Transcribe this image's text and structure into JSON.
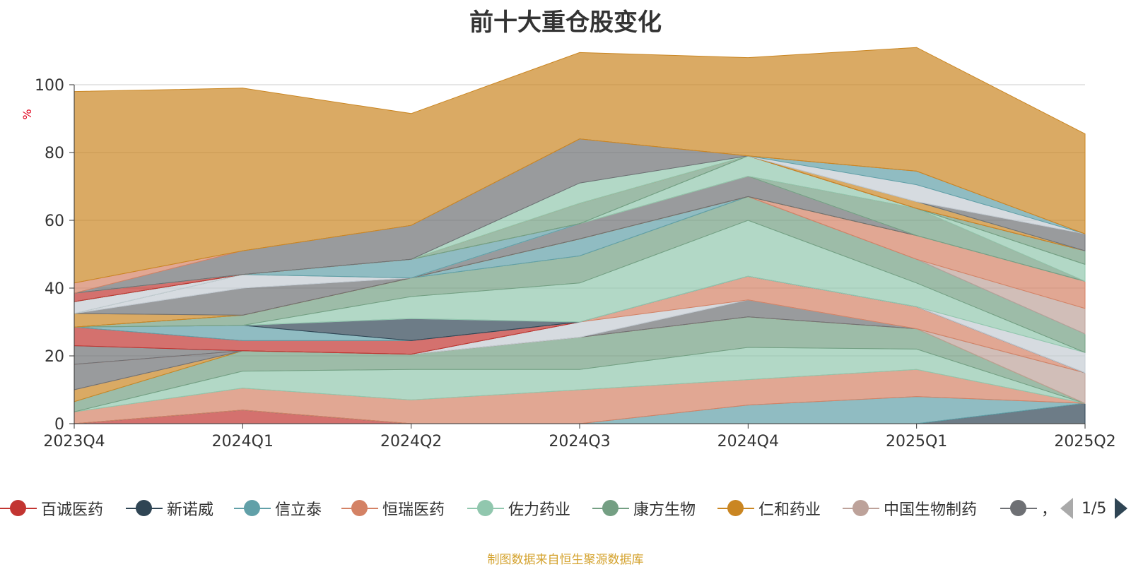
{
  "title": "前十大重仓股变化",
  "source_note": "制图数据来自恒生聚源数据库",
  "legend": {
    "items": [
      {
        "name": "百诚医药",
        "color": "#c23531"
      },
      {
        "name": "新诺威",
        "color": "#2f4554"
      },
      {
        "name": "信立泰",
        "color": "#61a0a8"
      },
      {
        "name": "恒瑞医药",
        "color": "#d48265"
      },
      {
        "name": "佐力药业",
        "color": "#91c7ae"
      },
      {
        "name": "康方生物",
        "color": "#749f83"
      },
      {
        "name": "仁和药业",
        "color": "#ca8622"
      },
      {
        "name": "中国生物制药",
        "color": "#bda29a"
      },
      {
        "name": "，",
        "color": "#6e7074"
      }
    ],
    "page": "1/5"
  },
  "chart_data": {
    "type": "area",
    "stacked": true,
    "title": "前十大重仓股变化",
    "ylabel": "%",
    "ylim": [
      0,
      100
    ],
    "yticks": [
      0,
      20,
      40,
      60,
      80,
      100
    ],
    "categories": [
      "2023Q4",
      "2024Q1",
      "2024Q2",
      "2024Q3",
      "2024Q4",
      "2025Q1",
      "2025Q2"
    ],
    "grid": true,
    "legend_position": "bottom",
    "band_opacity": 0.7,
    "series_layers": [
      {
        "color": "#c23531",
        "values": [
          0,
          4,
          0,
          0,
          0,
          0,
          0
        ]
      },
      {
        "color": "#2f4554",
        "values": [
          0,
          0,
          0,
          0,
          0,
          0,
          6
        ]
      },
      {
        "color": "#61a0a8",
        "values": [
          0,
          0,
          0,
          0,
          5.5,
          8,
          0
        ]
      },
      {
        "color": "#d48265",
        "values": [
          3.5,
          6.5,
          7,
          10,
          7.5,
          8,
          0
        ]
      },
      {
        "color": "#91c7ae",
        "values": [
          0,
          5,
          9,
          6,
          9.5,
          6,
          0
        ]
      },
      {
        "color": "#749f83",
        "values": [
          3,
          6,
          4.5,
          9.5,
          9,
          6,
          0
        ]
      },
      {
        "color": "#ca8622",
        "values": [
          3.5,
          0,
          0,
          0,
          0,
          0,
          0
        ]
      },
      {
        "color": "#bda29a",
        "values": [
          0,
          0,
          0,
          0,
          0,
          0,
          9
        ]
      },
      {
        "color": "#6e7074",
        "values": [
          7.5,
          0,
          0,
          0,
          5,
          0,
          0
        ]
      },
      {
        "color": "#c4ccd3",
        "values": [
          0,
          0,
          0,
          4.5,
          0,
          0,
          0
        ]
      },
      {
        "color": "#d48265",
        "values": [
          0,
          0,
          0,
          0,
          7,
          6.5,
          0
        ]
      },
      {
        "color": "#6e7074",
        "values": [
          5.5,
          0,
          0,
          0,
          0,
          0,
          0
        ]
      },
      {
        "color": "#c23531",
        "values": [
          5.5,
          3,
          4,
          0,
          0,
          0,
          0
        ]
      },
      {
        "color": "#61a0a8",
        "values": [
          0,
          4.5,
          0,
          0,
          0,
          0,
          0
        ]
      },
      {
        "color": "#2f4554",
        "values": [
          0,
          0,
          6.5,
          0,
          0,
          0,
          0
        ]
      },
      {
        "color": "#c4ccd3",
        "values": [
          0,
          0,
          0,
          0,
          0,
          0,
          6
        ]
      },
      {
        "color": "#91c7ae",
        "values": [
          0,
          0,
          6.5,
          11.5,
          16.5,
          7,
          0
        ]
      },
      {
        "color": "#749f83",
        "values": [
          0,
          3,
          5.5,
          8,
          7,
          7,
          5.5
        ]
      },
      {
        "color": "#61a0a8",
        "values": [
          0,
          0,
          0,
          5,
          0,
          0,
          0
        ]
      },
      {
        "color": "#bda29a",
        "values": [
          0,
          0,
          0,
          0,
          0,
          0,
          7.5
        ]
      },
      {
        "color": "#d48265",
        "values": [
          0,
          0,
          0,
          0,
          0,
          7,
          8
        ]
      },
      {
        "color": "#749f83",
        "values": [
          0,
          0,
          0,
          0,
          0,
          0,
          0
        ]
      },
      {
        "color": "#ca8622",
        "values": [
          4,
          0,
          0,
          0,
          0,
          0,
          0
        ]
      },
      {
        "color": "#6e7074",
        "values": [
          0,
          8,
          0,
          4.5,
          6,
          0,
          0
        ]
      },
      {
        "color": "#c4ccd3",
        "values": [
          0,
          4,
          0,
          0,
          0,
          0,
          0
        ]
      },
      {
        "color": "#749f83",
        "values": [
          0,
          0,
          0,
          0,
          0,
          8,
          0
        ]
      },
      {
        "color": "#c4ccd3",
        "values": [
          3.5,
          0,
          0,
          0,
          0,
          0,
          0
        ]
      },
      {
        "color": "#61a0a8",
        "values": [
          0,
          0,
          5.5,
          0,
          0,
          0,
          0
        ]
      },
      {
        "color": "#d48265",
        "values": [
          0,
          0,
          0,
          0,
          0,
          0,
          0
        ]
      },
      {
        "color": "#91c7ae",
        "values": [
          0,
          0,
          0,
          0,
          6,
          0,
          5
        ]
      },
      {
        "color": "#749f83",
        "values": [
          0,
          0,
          0,
          0,
          0,
          0,
          0
        ]
      },
      {
        "color": "#749f83",
        "values": [
          0,
          0,
          0,
          6,
          0,
          0,
          4
        ]
      },
      {
        "color": "#c23531",
        "values": [
          2.5,
          0,
          0,
          0,
          0,
          0,
          0
        ]
      },
      {
        "color": "#ca8622",
        "values": [
          0,
          0,
          0,
          0,
          0,
          2,
          0
        ]
      },
      {
        "color": "#bda29a",
        "values": [
          0,
          0,
          0,
          0,
          0,
          0,
          0
        ]
      },
      {
        "color": "#91c7ae",
        "values": [
          0,
          0,
          0,
          6,
          0,
          0,
          0
        ]
      },
      {
        "color": "#6e7074",
        "values": [
          0,
          7,
          10,
          13,
          0,
          0,
          5
        ]
      },
      {
        "color": "#c4ccd3",
        "values": [
          0,
          0,
          0,
          0,
          0,
          5,
          0
        ]
      },
      {
        "color": "#61a0a8",
        "values": [
          0,
          0,
          0,
          0,
          0,
          4,
          0
        ]
      },
      {
        "color": "#d48265",
        "values": [
          3,
          0,
          0,
          0,
          0,
          0,
          0
        ]
      },
      {
        "color": "#ca8622",
        "values": [
          56.5,
          48,
          33,
          25.5,
          29,
          36.5,
          29.5
        ]
      }
    ]
  }
}
